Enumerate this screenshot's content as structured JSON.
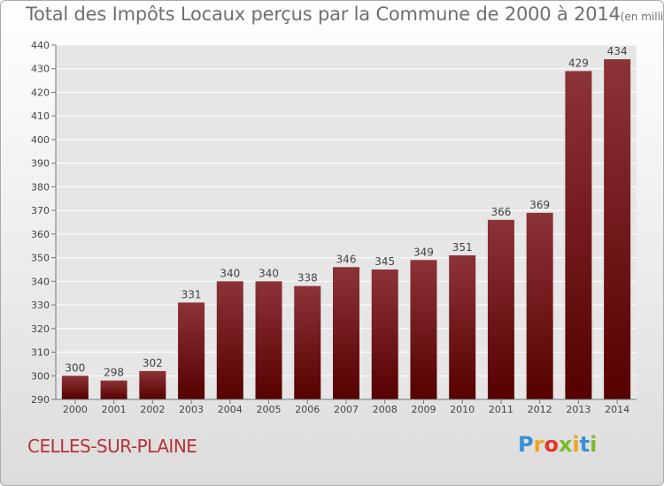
{
  "title": "Total des Impôts Locaux perçus par la Commune de 2000 à 2014",
  "unit": "(en milliers d'€)",
  "commune": "CELLES-SUR-PLAINE",
  "logo": {
    "letters": [
      "P",
      "r",
      "o",
      "x",
      "i",
      "t",
      "i"
    ],
    "colors": [
      "#3a8fd6",
      "#f2a51a",
      "#e5362c",
      "#7dbb2c",
      "#f2a51a",
      "#3a8fd6",
      "#7dbb2c"
    ]
  },
  "colors": {
    "bar_top": "#8c3338",
    "bar_bottom": "#560000",
    "axis": "#777777",
    "grid": "#ffffff",
    "text": "#444444",
    "plot_bg": "#e6e6e6"
  },
  "chart_data": {
    "type": "bar",
    "title": "Total des Impôts Locaux perçus par la Commune de 2000 à 2014",
    "xlabel": "",
    "ylabel": "",
    "categories": [
      "2000",
      "2001",
      "2002",
      "2003",
      "2004",
      "2005",
      "2006",
      "2007",
      "2008",
      "2009",
      "2010",
      "2011",
      "2012",
      "2013",
      "2014"
    ],
    "values": [
      300,
      298,
      302,
      331,
      340,
      340,
      338,
      346,
      345,
      349,
      351,
      366,
      369,
      429,
      434
    ],
    "ylim": [
      290,
      440
    ],
    "yticks": [
      290,
      300,
      310,
      320,
      330,
      340,
      350,
      360,
      370,
      380,
      390,
      400,
      410,
      420,
      430,
      440
    ],
    "grid": true
  }
}
